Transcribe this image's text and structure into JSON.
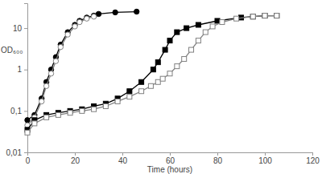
{
  "chart_data": {
    "type": "line",
    "log": "y",
    "x_label": "Time (hours)",
    "y_label": "OD₆₀₀",
    "xlim": [
      0,
      120
    ],
    "xticks": [
      0,
      20,
      40,
      60,
      80,
      100,
      120
    ],
    "ylim": [
      0.01,
      40
    ],
    "yticks": [
      {
        "value": 0.01,
        "label": "0,01"
      },
      {
        "value": 0.1,
        "label": "0,1"
      },
      1,
      10
    ],
    "series": [
      {
        "color": "#000000",
        "marker": "circle",
        "line_style": "solid",
        "x": [
          0,
          3,
          6,
          8,
          10,
          12,
          14,
          17,
          20,
          22,
          25,
          28,
          30,
          37,
          46
        ],
        "values": [
          0.06,
          0.08,
          0.2,
          0.5,
          1,
          2,
          4,
          8,
          12,
          15,
          18,
          20,
          22,
          24,
          25
        ]
      },
      {
        "color": "#808080",
        "marker": "open-circle",
        "line_style": "solid",
        "x": [
          0,
          3,
          6,
          8,
          10,
          12,
          14,
          17,
          20,
          22,
          25,
          28
        ],
        "values": [
          0.045,
          0.07,
          0.17,
          0.4,
          0.8,
          1.6,
          3.5,
          7,
          11,
          14,
          17,
          19
        ]
      },
      {
        "color": "#000000",
        "marker": "square",
        "line_style": "solid",
        "x": [
          0,
          3,
          8,
          13,
          18,
          23,
          28,
          33,
          38,
          43,
          48,
          53,
          55,
          58,
          60,
          63,
          67,
          72,
          80,
          90,
          95,
          100,
          105
        ],
        "values": [
          0.035,
          0.06,
          0.08,
          0.09,
          0.1,
          0.11,
          0.13,
          0.15,
          0.2,
          0.3,
          0.5,
          1,
          1.5,
          3,
          5,
          8,
          10,
          12,
          15,
          18,
          19,
          20,
          20
        ]
      },
      {
        "color": "#808080",
        "marker": "open-square",
        "line_style": "solid",
        "x": [
          0,
          3,
          8,
          13,
          18,
          23,
          28,
          33,
          38,
          43,
          48,
          52,
          55,
          57,
          60,
          63,
          66,
          69,
          72,
          75,
          78,
          82,
          88,
          95,
          100,
          105
        ],
        "values": [
          0.03,
          0.05,
          0.07,
          0.08,
          0.09,
          0.1,
          0.11,
          0.13,
          0.17,
          0.22,
          0.3,
          0.4,
          0.5,
          0.6,
          0.8,
          1.2,
          1.8,
          3,
          5,
          8,
          11,
          14,
          17,
          19,
          20,
          20
        ]
      }
    ]
  }
}
